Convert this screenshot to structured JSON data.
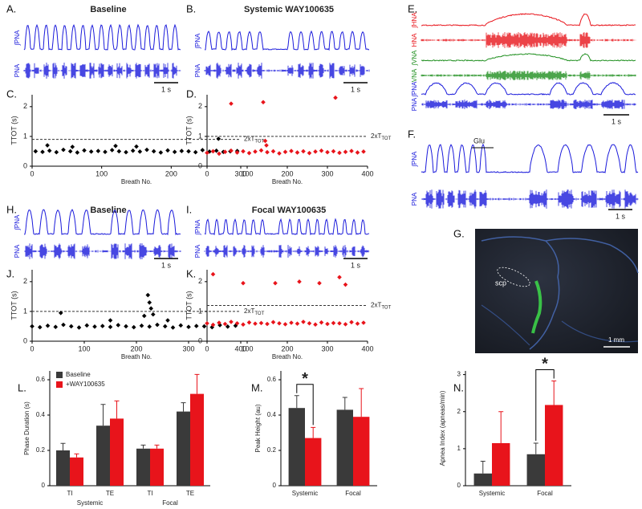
{
  "chart_data": [
    {
      "type": "scatter",
      "panel_label": "C.",
      "ylabel": "TTOT (s)",
      "xlabel": "Breath No.",
      "color": "#000000",
      "xlim": [
        0,
        300
      ],
      "xticks": [
        0,
        100,
        200,
        300
      ],
      "ylim": [
        0,
        2.4
      ],
      "yticks": [
        0,
        1,
        2
      ],
      "threshold": 0.9,
      "threshold_label": "2xT",
      "threshold_label_sub": "TOT",
      "x": [
        5,
        15,
        25,
        35,
        45,
        55,
        65,
        75,
        85,
        95,
        105,
        115,
        125,
        135,
        145,
        155,
        165,
        175,
        185,
        195,
        205,
        215,
        225,
        235,
        245,
        255,
        265,
        275,
        285,
        295,
        22,
        58,
        120,
        150,
        268
      ],
      "values": [
        0.5,
        0.48,
        0.52,
        0.47,
        0.55,
        0.5,
        0.46,
        0.53,
        0.49,
        0.51,
        0.48,
        0.54,
        0.5,
        0.47,
        0.52,
        0.49,
        0.55,
        0.5,
        0.46,
        0.53,
        0.48,
        0.51,
        0.5,
        0.47,
        0.54,
        0.49,
        0.52,
        0.48,
        0.5,
        0.51,
        0.7,
        0.65,
        0.68,
        0.66,
        0.92
      ]
    },
    {
      "type": "scatter",
      "panel_label": "D.",
      "ylabel": "TTOT (s)",
      "xlabel": "Breath No.",
      "color": "#e8141b",
      "xlim": [
        0,
        400
      ],
      "xticks": [
        0,
        100,
        200,
        300,
        400
      ],
      "ylim": [
        0,
        2.4
      ],
      "yticks": [
        0,
        1,
        2
      ],
      "threshold": 1.0,
      "threshold_label": "2xT",
      "threshold_label_sub": "TOT",
      "x": [
        0,
        15,
        30,
        45,
        60,
        75,
        90,
        105,
        120,
        135,
        150,
        165,
        180,
        195,
        210,
        225,
        240,
        255,
        270,
        285,
        300,
        315,
        330,
        345,
        360,
        375,
        390,
        60,
        140,
        145,
        148,
        320
      ],
      "values": [
        0.45,
        0.5,
        0.42,
        0.48,
        0.52,
        0.46,
        0.5,
        0.44,
        0.49,
        0.53,
        0.47,
        0.5,
        0.43,
        0.48,
        0.51,
        0.46,
        0.5,
        0.44,
        0.49,
        0.52,
        0.47,
        0.5,
        0.45,
        0.48,
        0.51,
        0.46,
        0.49,
        2.1,
        2.15,
        0.85,
        0.7,
        2.3
      ]
    },
    {
      "type": "scatter",
      "panel_label": "J.",
      "ylabel": "TTOT (s)",
      "xlabel": "Breath No.",
      "color": "#000000",
      "xlim": [
        0,
        400
      ],
      "xticks": [
        0,
        100,
        200,
        300,
        400
      ],
      "ylim": [
        0,
        2.4
      ],
      "yticks": [
        0,
        1,
        2
      ],
      "threshold": 1.0,
      "threshold_label": "2xT",
      "threshold_label_sub": "TOT",
      "x": [
        0,
        15,
        30,
        45,
        60,
        75,
        90,
        105,
        120,
        135,
        150,
        165,
        180,
        195,
        210,
        225,
        240,
        255,
        270,
        285,
        300,
        315,
        330,
        345,
        360,
        375,
        390,
        55,
        150,
        215,
        222,
        225,
        228,
        232,
        260
      ],
      "values": [
        0.5,
        0.47,
        0.52,
        0.48,
        0.55,
        0.5,
        0.46,
        0.53,
        0.49,
        0.51,
        0.48,
        0.54,
        0.5,
        0.47,
        0.52,
        0.49,
        0.55,
        0.5,
        0.46,
        0.53,
        0.48,
        0.51,
        0.5,
        0.47,
        0.54,
        0.49,
        0.52,
        0.95,
        0.7,
        0.85,
        1.55,
        1.3,
        1.1,
        0.9,
        0.7
      ]
    },
    {
      "type": "scatter",
      "panel_label": "K.",
      "ylabel": "TTOT (s)",
      "xlabel": "Breath No.",
      "color": "#e8141b",
      "xlim": [
        0,
        400
      ],
      "xticks": [
        0,
        100,
        200,
        300,
        400
      ],
      "ylim": [
        0,
        2.4
      ],
      "yticks": [
        0,
        1,
        2
      ],
      "threshold": 1.2,
      "threshold_label": "2xT",
      "threshold_label_sub": "TOT",
      "x": [
        0,
        15,
        30,
        45,
        60,
        75,
        90,
        105,
        120,
        135,
        150,
        165,
        180,
        195,
        210,
        225,
        240,
        255,
        270,
        285,
        300,
        315,
        330,
        345,
        360,
        375,
        390,
        15,
        90,
        170,
        230,
        280,
        330,
        345
      ],
      "values": [
        0.6,
        0.55,
        0.62,
        0.58,
        0.65,
        0.6,
        0.56,
        0.63,
        0.59,
        0.61,
        0.58,
        0.64,
        0.6,
        0.57,
        0.62,
        0.59,
        0.65,
        0.6,
        0.56,
        0.63,
        0.58,
        0.61,
        0.6,
        0.57,
        0.64,
        0.59,
        0.62,
        2.25,
        1.95,
        1.95,
        2.0,
        1.95,
        2.15,
        1.9
      ]
    },
    {
      "type": "bar",
      "panel_label": "L.",
      "ylabel": "Phase Duration (s)",
      "categories": [
        "TI",
        "TE",
        "TI",
        "TE"
      ],
      "groups": [
        "Systemic",
        "Focal"
      ],
      "ylim": [
        0,
        0.65
      ],
      "yticks": [
        0,
        0.2,
        0.4,
        0.6
      ],
      "series": [
        {
          "name": "Baseline",
          "color": "#3a3a3a",
          "values": [
            0.2,
            0.34,
            0.21,
            0.42
          ],
          "errors": [
            0.04,
            0.12,
            0.02,
            0.05
          ]
        },
        {
          "name": "+WAY100635",
          "color": "#e8141b",
          "values": [
            0.16,
            0.38,
            0.21,
            0.52
          ],
          "errors": [
            0.02,
            0.1,
            0.02,
            0.11
          ]
        }
      ]
    },
    {
      "type": "bar",
      "panel_label": "M.",
      "ylabel": "Peak Height (au)",
      "categories": [
        "Systemic",
        "Focal"
      ],
      "ylim": [
        0,
        0.65
      ],
      "yticks": [
        0,
        0.2,
        0.4,
        0.6
      ],
      "annotation": "*",
      "annotation_category": 0,
      "series": [
        {
          "color": "#3a3a3a",
          "values": [
            0.44,
            0.43
          ],
          "errors": [
            0.07,
            0.07
          ]
        },
        {
          "color": "#e8141b",
          "values": [
            0.27,
            0.39
          ],
          "errors": [
            0.06,
            0.16
          ]
        }
      ]
    },
    {
      "type": "bar",
      "panel_label": "N.",
      "ylabel": "Apnea Index (apneas/min)",
      "categories": [
        "Systemic",
        "Focal"
      ],
      "ylim": [
        0,
        3.1
      ],
      "yticks": [
        0,
        1,
        2,
        3
      ],
      "annotation": "*",
      "annotation_category": 1,
      "series": [
        {
          "color": "#3a3a3a",
          "values": [
            0.33,
            0.85
          ],
          "errors": [
            0.33,
            0.3
          ]
        },
        {
          "color": "#e8141b",
          "values": [
            1.15,
            2.18
          ],
          "errors": [
            0.85,
            0.65
          ]
        }
      ]
    }
  ],
  "trace_panels": [
    {
      "panel_label": "A.",
      "title": "Baseline",
      "channels": [
        "∫PNA",
        "PNA"
      ],
      "scale_bar": "1 s"
    },
    {
      "panel_label": "B.",
      "title": "Systemic WAY100635",
      "channels": [
        "∫PNA",
        "PNA"
      ],
      "scale_bar": "1 s"
    },
    {
      "panel_label": "E.",
      "channels": [
        "∫HNA",
        "HNA",
        "∫VNA",
        "VNA",
        "∫PNA",
        "PNA"
      ],
      "scale_bar": "1 s"
    },
    {
      "panel_label": "F.",
      "channels": [
        "∫PNA",
        "PNA"
      ],
      "scale_bar": "1 s",
      "annotation": "Glu"
    },
    {
      "panel_label": "H.",
      "title": "Baseline",
      "channels": [
        "∫PNA",
        "PNA"
      ],
      "scale_bar": "1 s"
    },
    {
      "panel_label": "I.",
      "title": "Focal WAY100635",
      "channels": [
        "∫PNA",
        "PNA"
      ],
      "scale_bar": "1 s"
    }
  ],
  "image_panel": {
    "panel_label": "G.",
    "region_label": "scp",
    "scale_bar": "1 mm"
  }
}
